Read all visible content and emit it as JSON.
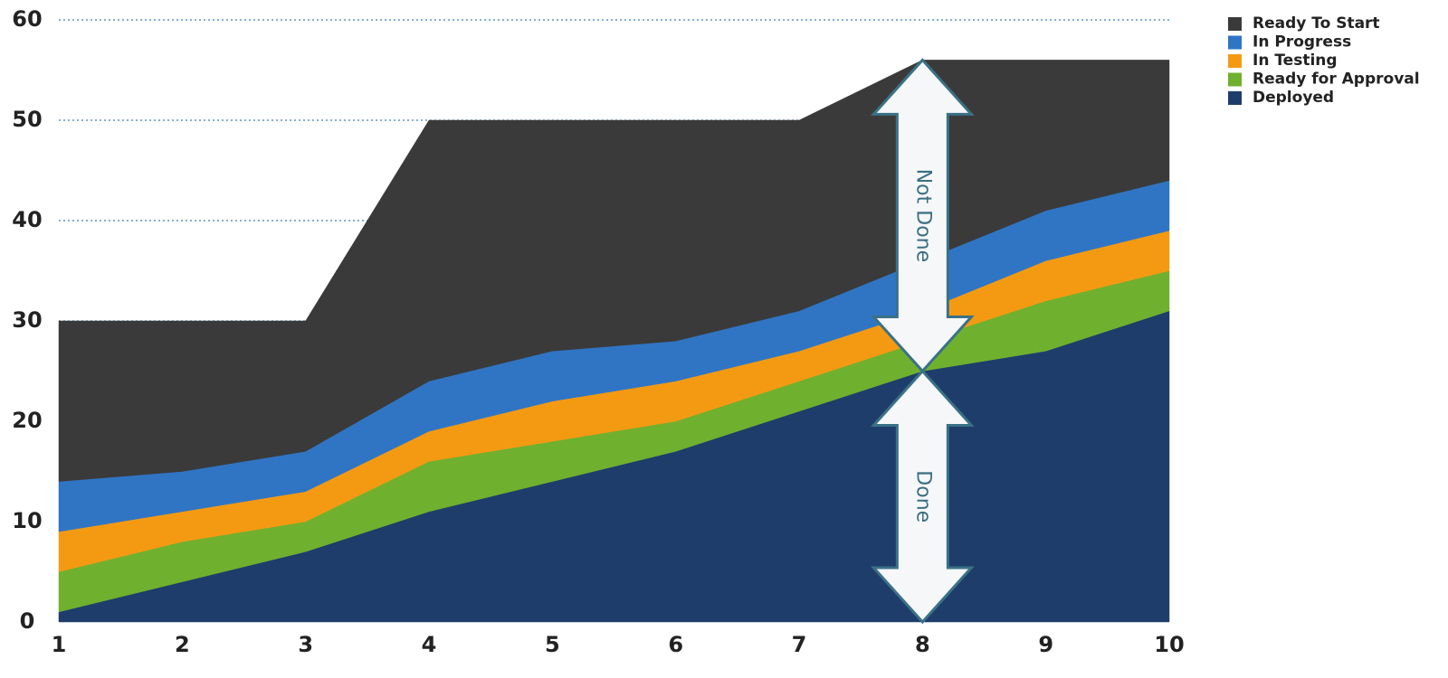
{
  "chart_data": {
    "type": "area",
    "stacked": true,
    "x": [
      1,
      2,
      3,
      4,
      5,
      6,
      7,
      8,
      9,
      10
    ],
    "ylim": [
      0,
      60
    ],
    "yticks": [
      0,
      10,
      20,
      30,
      40,
      50,
      60
    ],
    "grid": "horizontal dotted",
    "legend_position": "top-right",
    "series": [
      {
        "name": "Deployed",
        "color": "#1e3d6a",
        "values": [
          1,
          4,
          7,
          11,
          14,
          17,
          21,
          25,
          27,
          31
        ]
      },
      {
        "name": "Ready for Approval",
        "color": "#6fb02f",
        "values": [
          4,
          4,
          3,
          5,
          4,
          3,
          3,
          3,
          5,
          4
        ]
      },
      {
        "name": "In Testing",
        "color": "#f49a12",
        "values": [
          4,
          3,
          3,
          3,
          4,
          4,
          3,
          3,
          4,
          4
        ]
      },
      {
        "name": "In Progress",
        "color": "#3075c4",
        "values": [
          5,
          4,
          4,
          5,
          5,
          4,
          4,
          5,
          5,
          5
        ]
      },
      {
        "name": "Ready To Start",
        "color": "#3a3a3a",
        "values": [
          16,
          15,
          13,
          26,
          23,
          22,
          19,
          20,
          15,
          12
        ]
      }
    ],
    "legend_order": [
      "Ready To Start",
      "In Progress",
      "In Testing",
      "Ready for Approval",
      "Deployed"
    ],
    "annotations": [
      {
        "text": "Not Done",
        "x": 8,
        "y_from": 25,
        "y_to": 56
      },
      {
        "text": "Done",
        "x": 8,
        "y_from": 0,
        "y_to": 25
      }
    ]
  }
}
